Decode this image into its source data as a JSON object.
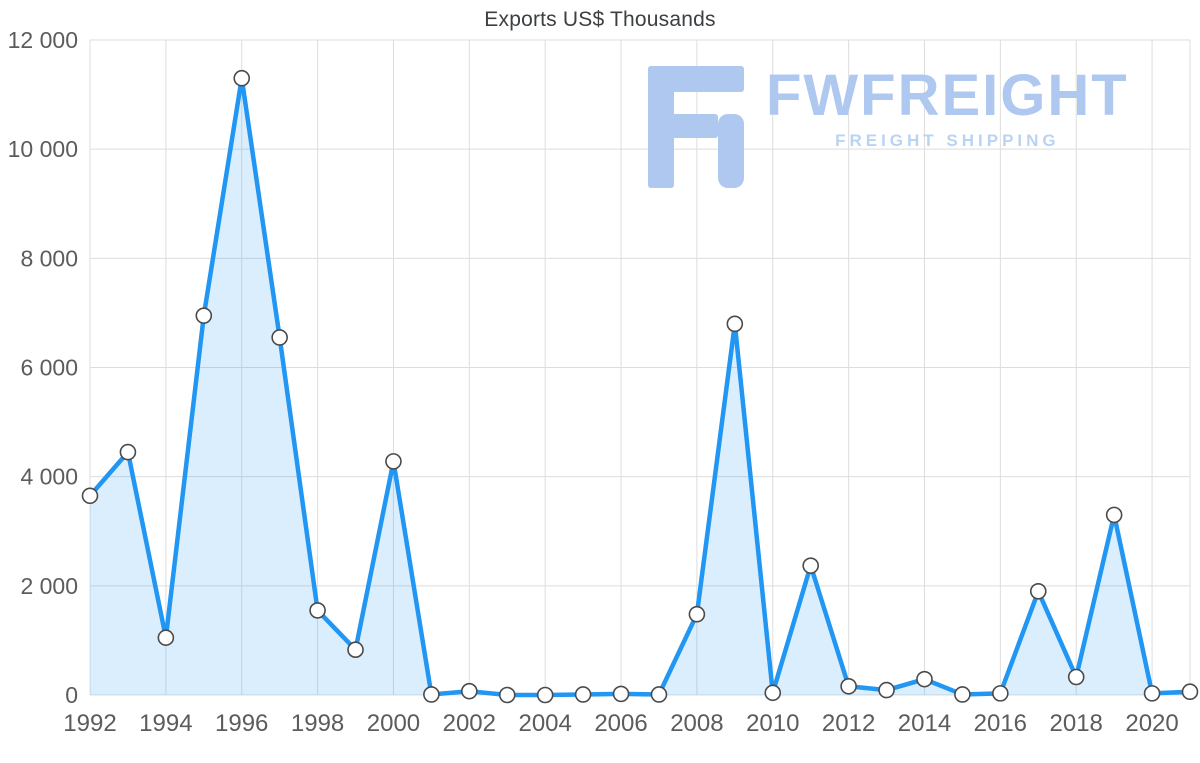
{
  "chart_data": {
    "type": "line",
    "title": "Exports US$ Thousands",
    "xlabel": "",
    "ylabel": "",
    "x": [
      1992,
      1993,
      1994,
      1995,
      1996,
      1997,
      1998,
      1999,
      2000,
      2001,
      2002,
      2003,
      2004,
      2005,
      2006,
      2007,
      2008,
      2009,
      2010,
      2011,
      2012,
      2013,
      2014,
      2015,
      2016,
      2017,
      2018,
      2019,
      2020,
      2021
    ],
    "values": [
      3650,
      4450,
      1050,
      6950,
      11300,
      6550,
      1550,
      830,
      4280,
      10,
      70,
      0,
      0,
      10,
      20,
      10,
      1480,
      6800,
      40,
      2370,
      160,
      90,
      290,
      10,
      30,
      1900,
      330,
      3300,
      30,
      60
    ],
    "ylim": [
      0,
      12000
    ],
    "ytick_values": [
      0,
      2000,
      4000,
      6000,
      8000,
      10000,
      12000
    ],
    "ytick_labels": [
      "0",
      "2 000",
      "4 000",
      "6 000",
      "8 000",
      "10 000",
      "12 000"
    ],
    "xtick_values": [
      1992,
      1994,
      1996,
      1998,
      2000,
      2002,
      2004,
      2006,
      2008,
      2010,
      2012,
      2014,
      2016,
      2018,
      2020
    ],
    "xtick_labels": [
      "1992",
      "1994",
      "1996",
      "1998",
      "2000",
      "2002",
      "2004",
      "2006",
      "2008",
      "2010",
      "2012",
      "2014",
      "2016",
      "2018",
      "2020"
    ],
    "grid": true,
    "legend": "none",
    "marker": "circle-white-gray-stroke"
  },
  "watermark": {
    "brand": "FWFREIGHT",
    "tagline": "FREIGHT SHIPPING"
  },
  "colors": {
    "line": "#2196f3",
    "fill": "rgba(33,150,243,0.16)",
    "marker_fill": "#ffffff",
    "marker_stroke": "#4a4a4a",
    "grid": "#dddddd",
    "axis_text": "#5c5c5c",
    "title_text": "#3c4043",
    "watermark": "#aec8f0",
    "watermark_tagline": "#b9d4f2"
  }
}
